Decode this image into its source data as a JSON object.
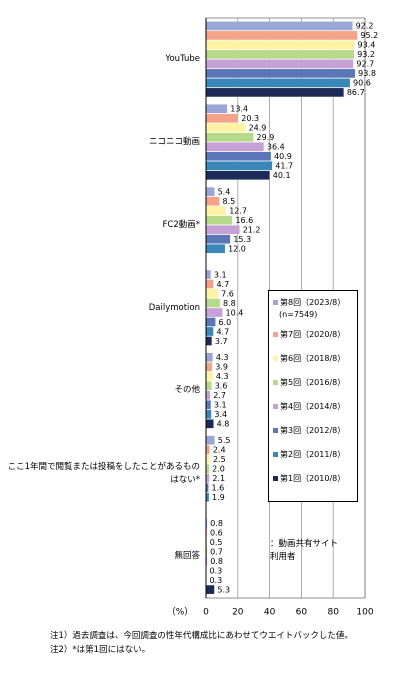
{
  "chart_data": {
    "type": "hbar",
    "categories": [
      "YouTube",
      "ニコニコ動画",
      "FC2動画*",
      "Dailymotion",
      "その他",
      "ここ1年間で閲覧または投稿をしたことがあるものはない*",
      "無回答"
    ],
    "series": [
      {
        "name": "第8回（2023/8）",
        "note": "(n=7549)",
        "color": "#9aa6d6",
        "values": [
          92.2,
          13.4,
          5.4,
          3.1,
          4.3,
          5.5,
          0.8
        ],
        "value_labels": [
          "92.2",
          "13.4",
          "5.4",
          "3.1",
          "4.3",
          "5.5",
          "0.8"
        ]
      },
      {
        "name": "第7回（2020/8）",
        "color": "#f4a388",
        "values": [
          95.2,
          20.3,
          8.5,
          4.7,
          3.9,
          2.4,
          0.6
        ],
        "value_labels": [
          "95.2",
          "20.3",
          "8.5",
          "4.7",
          "3.9",
          "2.4",
          "0.6"
        ]
      },
      {
        "name": "第6回（2018/8）",
        "color": "#fff2a0",
        "values": [
          93.4,
          24.9,
          12.7,
          7.6,
          4.3,
          2.5,
          0.5
        ],
        "value_labels": [
          "93.4",
          "24.9",
          "12.7",
          "7.6",
          "4.3",
          "2.5",
          "0.5"
        ]
      },
      {
        "name": "第5回（2016/8）",
        "color": "#b6da8a",
        "values": [
          93.2,
          29.9,
          16.6,
          8.8,
          3.6,
          2.0,
          0.7
        ],
        "value_labels": [
          "93.2",
          "29.9",
          "16.6",
          "8.8",
          "3.6",
          "2.0",
          "0.7"
        ]
      },
      {
        "name": "第4回（2014/8）",
        "color": "#c6a0d6",
        "values": [
          92.7,
          36.4,
          21.2,
          10.4,
          2.7,
          2.1,
          0.8
        ],
        "value_labels": [
          "92.7",
          "36.4",
          "21.2",
          "10.4",
          "2.7",
          "2.1",
          "0.8"
        ]
      },
      {
        "name": "第3回（2012/8）",
        "color": "#5a76b6",
        "values": [
          93.8,
          40.9,
          15.3,
          6.0,
          3.1,
          1.6,
          0.3
        ],
        "value_labels": [
          "93.8",
          "40.9",
          "15.3",
          "6.0",
          "3.1",
          "1.6",
          "0.3"
        ]
      },
      {
        "name": "第2回（2011/8）",
        "color": "#3a86b8",
        "values": [
          90.6,
          41.7,
          12.0,
          4.7,
          3.4,
          1.9,
          0.3
        ],
        "value_labels": [
          "90.6",
          "41.7",
          "12.0",
          "4.7",
          "3.4",
          "1.9",
          "0.3"
        ]
      },
      {
        "name": "第1回（2010/8）",
        "color": "#1b2a58",
        "values": [
          86.7,
          40.1,
          null,
          3.7,
          4.8,
          null,
          5.3
        ],
        "value_labels": [
          "86.7",
          "40.1",
          null,
          "3.7",
          "4.8",
          null,
          "5.3"
        ]
      }
    ],
    "xlim": [
      0,
      100
    ],
    "xticks": [
      0,
      20,
      40,
      60,
      80,
      100
    ],
    "grid": true,
    "x_unit_label": "（%）",
    "legend_caption": "：動画共有サイト利用者",
    "notes": [
      "注1）過去調査は、今回調査の性年代構成比にあわせてウエイトバックした値。",
      "注2）*は第1回にはない。"
    ]
  }
}
